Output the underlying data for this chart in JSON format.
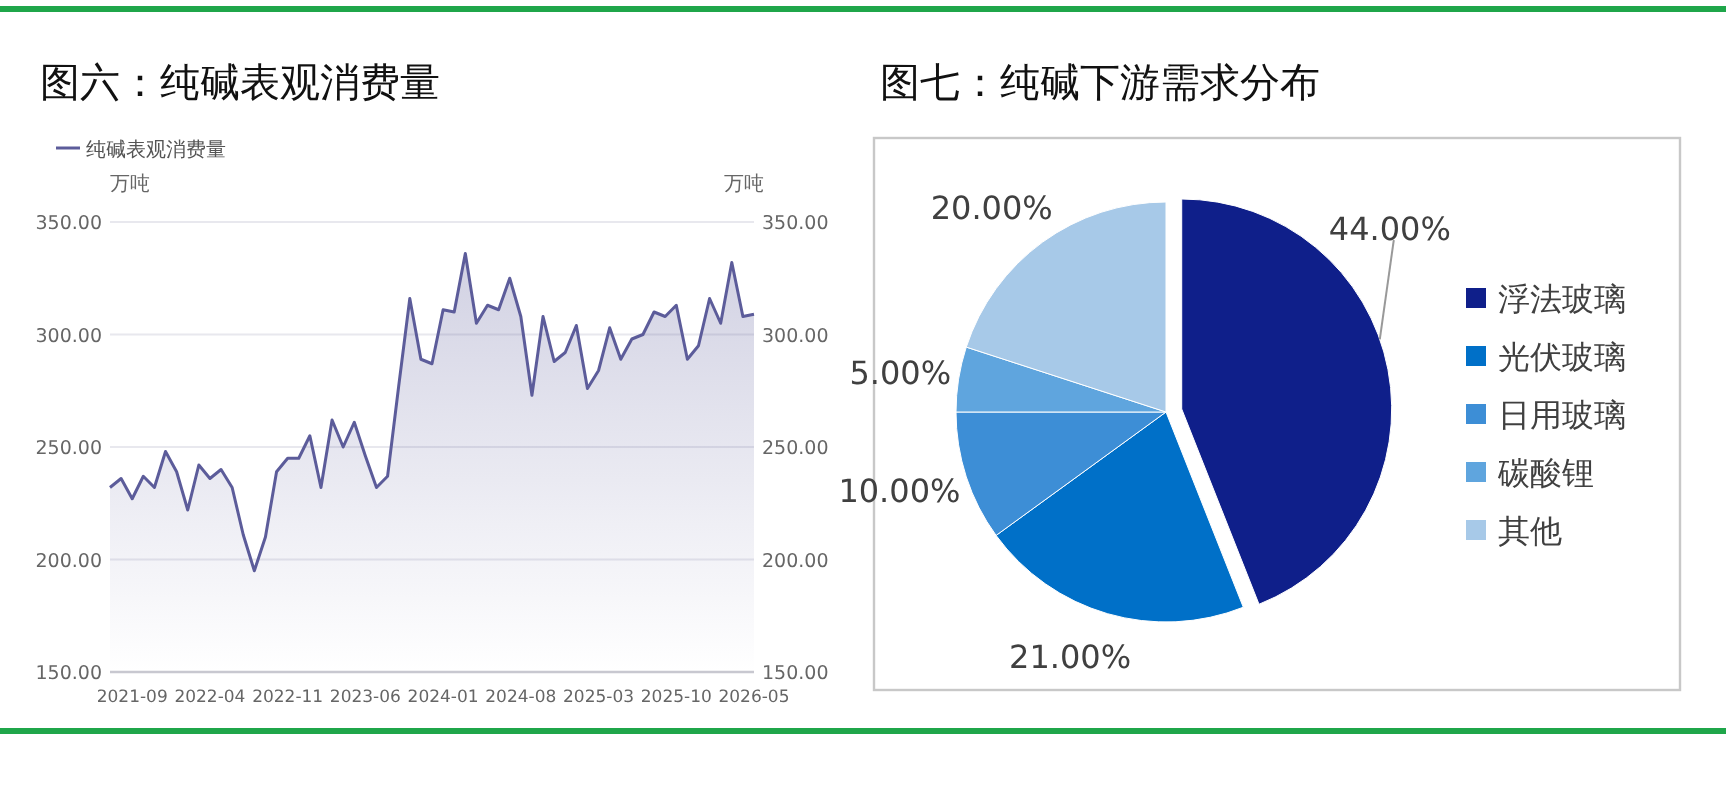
{
  "chart_data": [
    {
      "type": "area",
      "title": "图六：纯碱表观消费量",
      "ylabel": "万吨",
      "y2label": "万吨",
      "legend": "top left",
      "grid": "y",
      "x": [
        "2021-07",
        "2021-08",
        "2021-09",
        "2021-10",
        "2021-11",
        "2021-12",
        "2022-01",
        "2022-02",
        "2022-03",
        "2022-04",
        "2022-05",
        "2022-06",
        "2022-07",
        "2022-08",
        "2022-09",
        "2022-10",
        "2022-11",
        "2022-12",
        "2023-01",
        "2023-02",
        "2023-03",
        "2023-04",
        "2023-05",
        "2023-06",
        "2023-07",
        "2023-08",
        "2023-09",
        "2023-10",
        "2023-11",
        "2023-12",
        "2024-01",
        "2024-02",
        "2024-03",
        "2024-04",
        "2024-05",
        "2024-06",
        "2024-07",
        "2024-08",
        "2024-09",
        "2024-10",
        "2024-11",
        "2024-12",
        "2025-01",
        "2025-02",
        "2025-03",
        "2025-04",
        "2025-05",
        "2025-06",
        "2025-07",
        "2025-08",
        "2025-09",
        "2025-10",
        "2025-11",
        "2025-12",
        "2026-01",
        "2026-02",
        "2026-03",
        "2026-04",
        "2026-05"
      ],
      "series": [
        {
          "name": "纯碱表观消费量",
          "color": "#5c5c9a",
          "values": [
            232,
            236,
            227,
            237,
            232,
            248,
            239,
            222,
            242,
            236,
            240,
            232,
            211,
            195,
            210,
            239,
            245,
            245,
            255,
            232,
            262,
            250,
            261,
            246,
            232,
            237,
            277,
            316,
            289,
            287,
            311,
            310,
            336,
            305,
            313,
            311,
            325,
            308,
            273,
            308,
            288,
            292,
            304,
            276,
            284,
            303,
            289,
            298,
            300,
            310,
            308,
            313,
            289,
            295,
            316,
            305,
            332,
            308,
            309
          ]
        }
      ],
      "xlim": [
        "2021-07",
        "2026-05"
      ],
      "xticks": [
        "2021-09",
        "2022-04",
        "2022-11",
        "2023-06",
        "2024-01",
        "2024-08",
        "2025-03",
        "2025-10",
        "2026-05"
      ],
      "ylim": [
        150,
        350
      ],
      "yticks": [
        {
          "value": 150,
          "label": "150.00"
        },
        {
          "value": 200,
          "label": "200.00"
        },
        {
          "value": 250,
          "label": "250.00"
        },
        {
          "value": 300,
          "label": "300.00"
        },
        {
          "value": 350,
          "label": "350.00"
        }
      ],
      "y2lim": [
        150,
        350
      ],
      "y2ticks": [
        {
          "value": 150,
          "label": "150.00"
        },
        {
          "value": 200,
          "label": "200.00"
        },
        {
          "value": 250,
          "label": "250.00"
        },
        {
          "value": 300,
          "label": "300.00"
        },
        {
          "value": 350,
          "label": "350.00"
        }
      ]
    },
    {
      "type": "pie",
      "title": "图七：纯碱下游需求分布",
      "legend": "right",
      "categories": [
        "浮法玻璃",
        "光伏玻璃",
        "日用玻璃",
        "碳酸锂",
        "其他"
      ],
      "values": [
        44,
        21,
        10,
        5,
        20
      ],
      "colors": [
        "#0f1f8a",
        "#0070c8",
        "#3d8ed6",
        "#5fa5de",
        "#a7c9e8"
      ],
      "value_labels": [
        "44.00%",
        "21.00%",
        "10.00%",
        "5.00%",
        "20.00%"
      ]
    }
  ]
}
